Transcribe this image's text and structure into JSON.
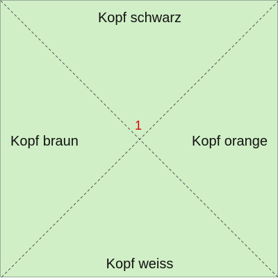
{
  "tile": {
    "background_color": "#d0efc6",
    "diagonal_color": "#555555",
    "number_color": "#e00000",
    "labels": {
      "top": "Kopf schwarz",
      "left": "Kopf braun",
      "right": "Kopf orange",
      "bottom": "Kopf weiss"
    },
    "center_number": "1"
  }
}
